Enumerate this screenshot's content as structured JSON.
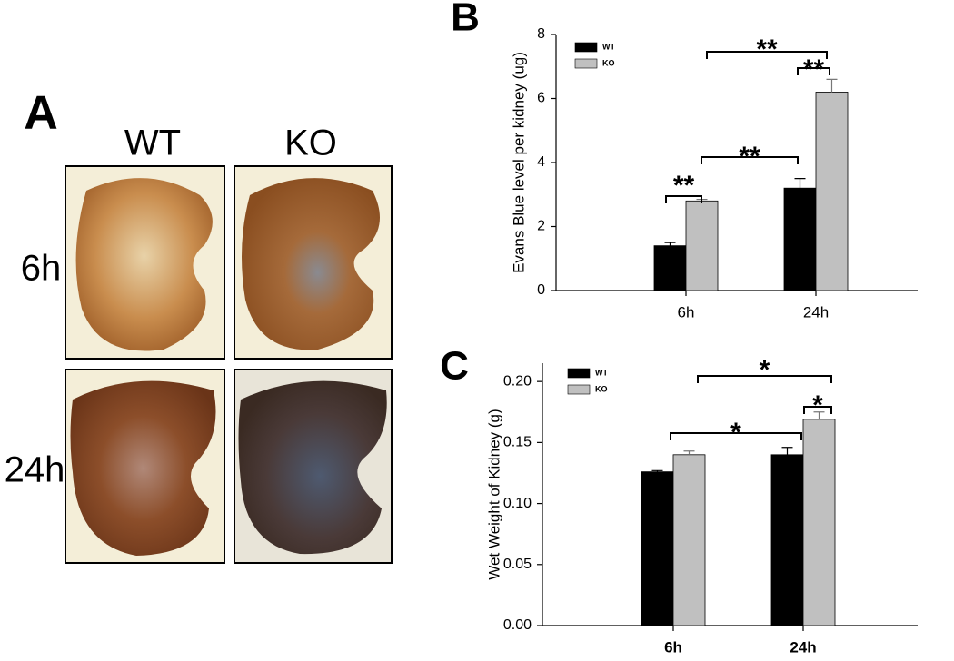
{
  "panel_a": {
    "label": "A",
    "columns": [
      "WT",
      "KO"
    ],
    "rows": [
      "6h",
      "24h"
    ]
  },
  "chart_data": [
    {
      "type": "bar",
      "panel_label": "B",
      "y_label": "Evans Blue level per kidney (ug)",
      "categories": [
        "6h",
        "24h"
      ],
      "series": [
        {
          "name": "WT",
          "color": "#000000",
          "values": [
            1.4,
            3.2
          ],
          "errors": [
            0.1,
            0.3
          ]
        },
        {
          "name": "KO",
          "color": "#c0c0c0",
          "values": [
            2.8,
            6.2
          ],
          "errors": [
            0.05,
            0.4
          ]
        }
      ],
      "ylim": [
        0,
        8
      ],
      "yticks": [
        0,
        2,
        4,
        6,
        8
      ],
      "annotations": [
        "**",
        "**",
        "**",
        "**"
      ]
    },
    {
      "type": "bar",
      "panel_label": "C",
      "y_label": "Wet Weight of Kidney (g)",
      "categories": [
        "6h",
        "24h"
      ],
      "series": [
        {
          "name": "WT",
          "color": "#000000",
          "values": [
            0.126,
            0.14
          ],
          "errors": [
            0.001,
            0.006
          ]
        },
        {
          "name": "KO",
          "color": "#c0c0c0",
          "values": [
            0.14,
            0.169
          ],
          "errors": [
            0.003,
            0.006
          ]
        }
      ],
      "ylim": [
        0,
        0.215
      ],
      "yticks": [
        {
          "value": 0,
          "label": "0.00"
        },
        {
          "value": 0.05,
          "label": "0.05"
        },
        {
          "value": 0.1,
          "label": "0.10"
        },
        {
          "value": 0.15,
          "label": "0.15"
        },
        {
          "value": 0.2,
          "label": "0.20"
        }
      ],
      "annotations": [
        "*",
        "*",
        "*"
      ]
    }
  ]
}
